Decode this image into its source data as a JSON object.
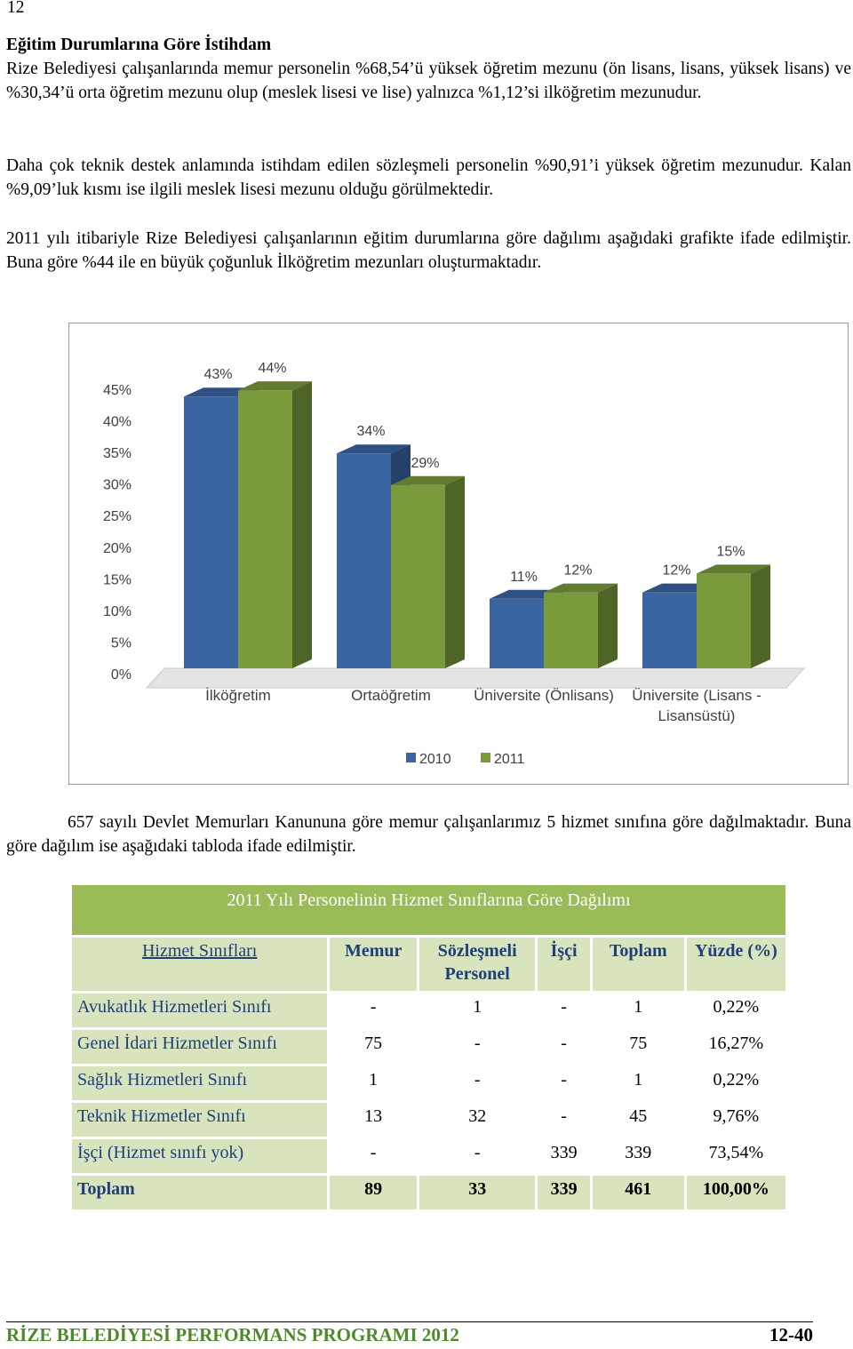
{
  "page_number": "12",
  "heading": "Eğitim Durumlarına Göre İstihdam",
  "paragraphs": [
    "Rize Belediyesi çalışanlarında memur personelin %68,54’ü yüksek öğretim mezunu (ön lisans, lisans, yüksek lisans) ve %30,34’ü orta öğretim mezunu olup (meslek lisesi ve lise) yalnızca %1,12’si ilköğretim mezunudur.",
    "Daha çok teknik destek anlamında istihdam edilen sözleşmeli personelin %90,91’i yüksek öğretim mezunudur. Kalan %9,09’luk kısmı ise ilgili meslek lisesi mezunu olduğu görülmektedir.",
    "2011 yılı itibariyle Rize Belediyesi çalışanlarının eğitim durumlarına göre dağılımı aşağıdaki grafikte ifade edilmiştir. Buna göre %44 ile en büyük çoğunluk İlköğretim mezunları oluşturmaktadır."
  ],
  "chart_data": {
    "type": "bar",
    "categories": [
      "İlköğretim",
      "Ortaöğretim",
      "Üniversite (Önlisans)",
      "Üniversite (Lisans - Lisansüstü)"
    ],
    "series": [
      {
        "name": "2010",
        "color": "#3b64a2",
        "values": [
          43,
          34,
          11,
          12
        ],
        "value_labels": [
          "43%",
          "34%",
          "11%",
          "12%"
        ]
      },
      {
        "name": "2011",
        "color": "#7a9a3c",
        "values": [
          44,
          29,
          12,
          15
        ],
        "value_labels": [
          "44%",
          "29%",
          "12%",
          "15%"
        ]
      }
    ],
    "ylim": [
      0,
      45
    ],
    "yticks": [
      {
        "value": 0,
        "label": "0%"
      },
      {
        "value": 5,
        "label": "5%"
      },
      {
        "value": 10,
        "label": "10%"
      },
      {
        "value": 15,
        "label": "15%"
      },
      {
        "value": 20,
        "label": "20%"
      },
      {
        "value": 25,
        "label": "25%"
      },
      {
        "value": 30,
        "label": "30%"
      },
      {
        "value": 35,
        "label": "35%"
      },
      {
        "value": 40,
        "label": "40%"
      },
      {
        "value": 45,
        "label": "45%"
      }
    ],
    "legend": "bottom"
  },
  "paragraph_after": "657 sayılı Devlet Memurları Kanununa göre memur çalışanlarımız 5 hizmet sınıfına göre dağılmaktadır. Buna göre dağılım ise aşağıdaki tabloda ifade edilmiştir.",
  "table": {
    "title": "2011 Yılı Personelinin Hizmet Sınıflarına Göre Dağılımı",
    "header": [
      "Hizmet Sınıfları",
      "Memur",
      "Sözleşmeli Personel",
      "İşçi",
      "Toplam",
      "Yüzde (%)"
    ],
    "rows": [
      [
        "Avukatlık Hizmetleri Sınıfı",
        "-",
        "1",
        "-",
        "1",
        "0,22%"
      ],
      [
        "Genel İdari Hizmetler Sınıfı",
        "75",
        "-",
        "-",
        "75",
        "16,27%"
      ],
      [
        "Sağlık Hizmetleri Sınıfı",
        "1",
        "-",
        "-",
        "1",
        "0,22%"
      ],
      [
        "Teknik Hizmetler Sınıfı",
        "13",
        "32",
        "-",
        "45",
        "9,76%"
      ],
      [
        "İşçi (Hizmet sınıfı yok)",
        "-",
        "-",
        "339",
        "339",
        "73,54%"
      ],
      [
        "Toplam",
        "89",
        "33",
        "339",
        "461",
        "100,00%"
      ]
    ]
  },
  "footer": {
    "title": "RİZE BELEDİYESİ PERFORMANS PROGRAMI 2012",
    "page": "12-40"
  }
}
